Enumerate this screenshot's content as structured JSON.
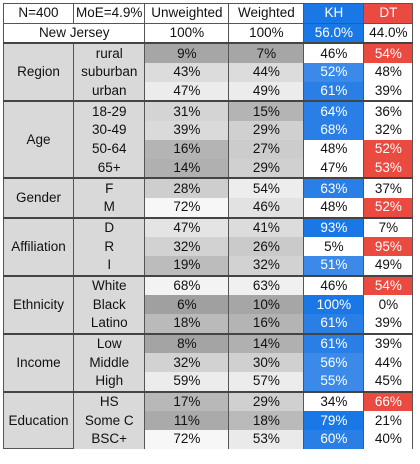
{
  "header": {
    "n": "N=400",
    "moe": "MoE=4.9%",
    "unweighted": "Unweighted",
    "weighted": "Weighted",
    "kh": "KH",
    "dt": "DT",
    "state": "New Jersey",
    "unw_total": "100%",
    "w_total": "100%",
    "kh_total": "56.0%",
    "dt_total": "44.0%"
  },
  "groups": [
    {
      "label": "Region",
      "rows": [
        {
          "sub": "rural",
          "unw": "9%",
          "w": "7%",
          "kh": "46%",
          "dt": "54%",
          "unwc": "#a6a6a6",
          "wc": "#a6a6a6",
          "khc": "#ffffff",
          "dtc": "#ea4a3f"
        },
        {
          "sub": "suburban",
          "unw": "43%",
          "w": "44%",
          "kh": "52%",
          "dt": "48%",
          "unwc": "#dcdcdc",
          "wc": "#dcdcdc",
          "khc": "#3b8aea",
          "dtc": "#ffffff"
        },
        {
          "sub": "urban",
          "unw": "47%",
          "w": "49%",
          "kh": "61%",
          "dt": "39%",
          "unwc": "#ececec",
          "wc": "#ececec",
          "khc": "#2a7fe6",
          "dtc": "#ffffff"
        }
      ]
    },
    {
      "label": "Age",
      "rows": [
        {
          "sub": "18-29",
          "unw": "31%",
          "w": "15%",
          "kh": "64%",
          "dt": "36%",
          "unwc": "#d4d4d4",
          "wc": "#b4b4b4",
          "khc": "#2a7fe6",
          "dtc": "#ffffff"
        },
        {
          "sub": "30-49",
          "unw": "39%",
          "w": "29%",
          "kh": "68%",
          "dt": "32%",
          "unwc": "#dadada",
          "wc": "#d0d0d0",
          "khc": "#2a7fe6",
          "dtc": "#ffffff"
        },
        {
          "sub": "50-64",
          "unw": "16%",
          "w": "27%",
          "kh": "48%",
          "dt": "52%",
          "unwc": "#b4b4b4",
          "wc": "#cccccc",
          "khc": "#ffffff",
          "dtc": "#ea4a3f"
        },
        {
          "sub": "65+",
          "unw": "14%",
          "w": "29%",
          "kh": "47%",
          "dt": "53%",
          "unwc": "#b0b0b0",
          "wc": "#d0d0d0",
          "khc": "#ffffff",
          "dtc": "#ea4a3f"
        }
      ]
    },
    {
      "label": "Gender",
      "rows": [
        {
          "sub": "F",
          "unw": "28%",
          "w": "54%",
          "kh": "63%",
          "dt": "37%",
          "unwc": "#cecece",
          "wc": "#ededed",
          "khc": "#2a7fe6",
          "dtc": "#ffffff"
        },
        {
          "sub": "M",
          "unw": "72%",
          "w": "46%",
          "kh": "48%",
          "dt": "52%",
          "unwc": "#f7f7f7",
          "wc": "#e2e2e2",
          "khc": "#ffffff",
          "dtc": "#ea4a3f"
        }
      ]
    },
    {
      "label": "Affiliation",
      "rows": [
        {
          "sub": "D",
          "unw": "47%",
          "w": "41%",
          "kh": "93%",
          "dt": "7%",
          "unwc": "#e4e4e4",
          "wc": "#dcdcdc",
          "khc": "#1a78e6",
          "dtc": "#ffffff"
        },
        {
          "sub": "R",
          "unw": "32%",
          "w": "26%",
          "kh": "5%",
          "dt": "95%",
          "unwc": "#d2d2d2",
          "wc": "#cacaca",
          "khc": "#ffffff",
          "dtc": "#ea4a3f"
        },
        {
          "sub": "I",
          "unw": "19%",
          "w": "32%",
          "kh": "51%",
          "dt": "49%",
          "unwc": "#bcbcbc",
          "wc": "#d2d2d2",
          "khc": "#3b8aea",
          "dtc": "#ffffff"
        }
      ]
    },
    {
      "label": "Ethnicity",
      "rows": [
        {
          "sub": "White",
          "unw": "68%",
          "w": "63%",
          "kh": "46%",
          "dt": "54%",
          "unwc": "#f3f3f3",
          "wc": "#f0f0f0",
          "khc": "#ffffff",
          "dtc": "#ea4a3f"
        },
        {
          "sub": "Black",
          "unw": "6%",
          "w": "10%",
          "kh": "100%",
          "dt": "0%",
          "unwc": "#a0a0a0",
          "wc": "#a6a6a6",
          "khc": "#1a78e6",
          "dtc": "#ffffff"
        },
        {
          "sub": "Latino",
          "unw": "18%",
          "w": "16%",
          "kh": "61%",
          "dt": "39%",
          "unwc": "#bababa",
          "wc": "#b4b4b4",
          "khc": "#2a7fe6",
          "dtc": "#ffffff"
        }
      ]
    },
    {
      "label": "Income",
      "rows": [
        {
          "sub": "Low",
          "unw": "8%",
          "w": "14%",
          "kh": "61%",
          "dt": "39%",
          "unwc": "#a4a4a4",
          "wc": "#b0b0b0",
          "khc": "#2a7fe6",
          "dtc": "#ffffff"
        },
        {
          "sub": "Middle",
          "unw": "32%",
          "w": "30%",
          "kh": "56%",
          "dt": "44%",
          "unwc": "#d2d2d2",
          "wc": "#d0d0d0",
          "khc": "#3b8aea",
          "dtc": "#ffffff"
        },
        {
          "sub": "High",
          "unw": "59%",
          "w": "57%",
          "kh": "55%",
          "dt": "45%",
          "unwc": "#ececec",
          "wc": "#ececec",
          "khc": "#3b8aea",
          "dtc": "#ffffff"
        }
      ]
    },
    {
      "label": "Education",
      "rows": [
        {
          "sub": "HS",
          "unw": "17%",
          "w": "29%",
          "kh": "34%",
          "dt": "66%",
          "unwc": "#b8b8b8",
          "wc": "#d0d0d0",
          "khc": "#ffffff",
          "dtc": "#ea4a3f"
        },
        {
          "sub": "Some C",
          "unw": "11%",
          "w": "18%",
          "kh": "79%",
          "dt": "21%",
          "unwc": "#aaaaaa",
          "wc": "#bababa",
          "khc": "#1a78e6",
          "dtc": "#ffffff"
        },
        {
          "sub": "BSC+",
          "unw": "72%",
          "w": "53%",
          "kh": "60%",
          "dt": "40%",
          "unwc": "#f7f7f7",
          "wc": "#eaeaea",
          "khc": "#2a7fe6",
          "dtc": "#ffffff"
        }
      ]
    }
  ]
}
